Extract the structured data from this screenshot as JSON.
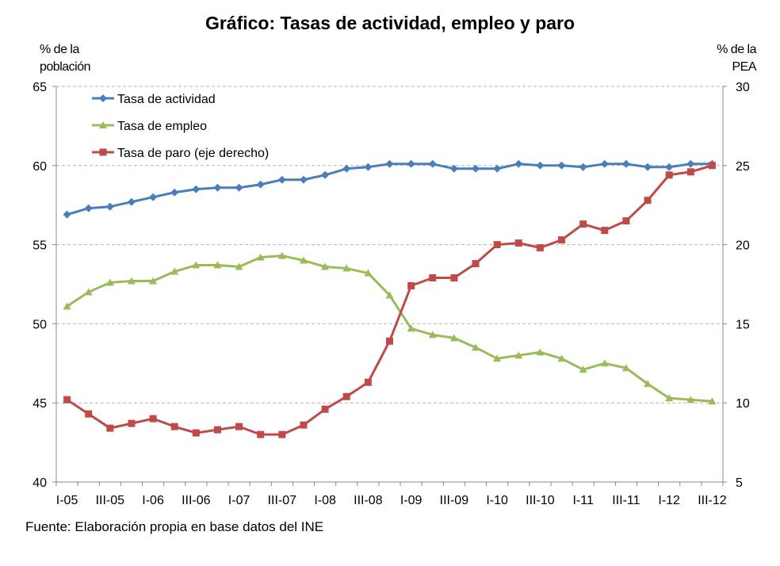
{
  "colors": {
    "activity": "#4a7ebb",
    "employment": "#9bbb59",
    "unemployment": "#be4b48",
    "grid": "#b3b3b3",
    "axis": "#888888"
  },
  "chart_data": {
    "type": "line",
    "title": "Gráfico: Tasas de actividad, empleo y paro",
    "ylabel_left": [
      "% de la",
      "población"
    ],
    "ylabel_right": [
      "% de la",
      "PEA"
    ],
    "ylim_left": [
      40,
      65
    ],
    "ylim_right": [
      5,
      30
    ],
    "yticks_left": [
      40,
      45,
      50,
      55,
      60,
      65
    ],
    "yticks_right": [
      5,
      10,
      15,
      20,
      25,
      30
    ],
    "grid": true,
    "legend_position": "top-left",
    "categories": [
      "I-05",
      "II-05",
      "III-05",
      "IV-05",
      "I-06",
      "II-06",
      "III-06",
      "IV-06",
      "I-07",
      "II-07",
      "III-07",
      "IV-07",
      "I-08",
      "II-08",
      "III-08",
      "IV-08",
      "I-09",
      "II-09",
      "III-09",
      "IV-09",
      "I-10",
      "II-10",
      "III-10",
      "IV-10",
      "I-11",
      "II-11",
      "III-11",
      "IV-11",
      "I-12",
      "II-12",
      "III-12"
    ],
    "xtick_labels": [
      "I-05",
      "III-05",
      "I-06",
      "III-06",
      "I-07",
      "III-07",
      "I-08",
      "III-08",
      "I-09",
      "III-09",
      "I-10",
      "III-10",
      "I-11",
      "III-11",
      "I-12",
      "III-12"
    ],
    "series": [
      {
        "name": "Tasa de actividad",
        "axis": "left",
        "marker": "diamond",
        "values": [
          56.9,
          57.3,
          57.4,
          57.7,
          58.0,
          58.3,
          58.5,
          58.6,
          58.6,
          58.8,
          59.1,
          59.1,
          59.4,
          59.8,
          59.9,
          60.1,
          60.1,
          60.1,
          59.8,
          59.8,
          59.8,
          60.1,
          60.0,
          60.0,
          59.9,
          60.1,
          60.1,
          59.9,
          59.9,
          60.1,
          60.1
        ]
      },
      {
        "name": "Tasa de empleo",
        "axis": "left",
        "marker": "triangle",
        "values": [
          51.1,
          52.0,
          52.6,
          52.7,
          52.7,
          53.3,
          53.7,
          53.7,
          53.6,
          54.2,
          54.3,
          54.0,
          53.6,
          53.5,
          53.2,
          51.8,
          49.7,
          49.3,
          49.1,
          48.5,
          47.8,
          48.0,
          48.2,
          47.8,
          47.1,
          47.5,
          47.2,
          46.2,
          45.3,
          45.2,
          45.1
        ]
      },
      {
        "name": "Tasa de paro (eje derecho)",
        "axis": "right",
        "marker": "square",
        "values": [
          10.2,
          9.3,
          8.4,
          8.7,
          9.0,
          8.5,
          8.1,
          8.3,
          8.5,
          8.0,
          8.0,
          8.6,
          9.6,
          10.4,
          11.3,
          13.9,
          17.4,
          17.9,
          17.9,
          18.8,
          20.0,
          20.1,
          19.8,
          20.3,
          21.3,
          20.9,
          21.5,
          22.8,
          24.4,
          24.6,
          25.0
        ]
      }
    ]
  },
  "source": "Fuente: Elaboración propia en base datos del INE"
}
